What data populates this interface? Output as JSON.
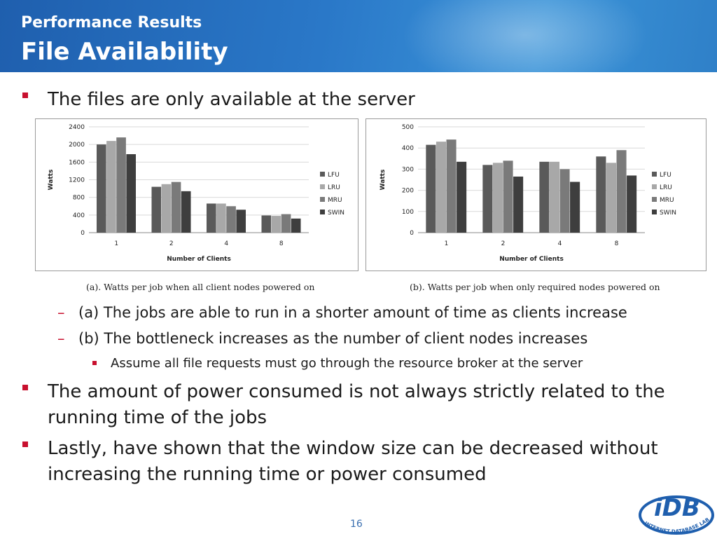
{
  "slide": {
    "subtitle": "Performance Results",
    "title": "File Availability",
    "bullets": [
      "The files are only available at the server",
      "The amount of power consumed is not always strictly related to the running time of the jobs",
      "Lastly, have shown that the window size can be decreased without increasing the running time or power consumed"
    ],
    "sub_bullets": [
      "(a) The jobs are able to run in a shorter amount of time as clients increase",
      "(b) The bottleneck increases as the number of client nodes increases"
    ],
    "sub_sub_bullets": [
      "Assume all file requests must go through the resource broker at the server"
    ],
    "page_number": "16",
    "logo_text": "iDB",
    "logo_ring_text": "INTERNET DATABASE LAB"
  },
  "colors": {
    "header": "#2a78c8",
    "bullet_red": "#c8102e",
    "series": [
      "#5a5a5a",
      "#a8a8a8",
      "#7a7a7a",
      "#3e3e3e"
    ],
    "logo_blue": "#1f5fae"
  },
  "chart_data": [
    {
      "type": "bar",
      "title": "",
      "caption": "(a). Watts per job when all client nodes powered on",
      "xlabel": "Number of Clients",
      "ylabel": "Watts",
      "categories": [
        "1",
        "2",
        "4",
        "8"
      ],
      "ylim": [
        0,
        2400
      ],
      "yticks": [
        "0",
        "400",
        "800",
        "1200",
        "1600",
        "2000",
        "2400"
      ],
      "legend_position": "right",
      "grid": true,
      "series": [
        {
          "name": "LFU",
          "values": [
            2000,
            1040,
            660,
            390
          ]
        },
        {
          "name": "LRU",
          "values": [
            2080,
            1100,
            660,
            380
          ]
        },
        {
          "name": "MRU",
          "values": [
            2160,
            1150,
            600,
            420
          ]
        },
        {
          "name": "SWIN",
          "values": [
            1780,
            940,
            520,
            320
          ]
        }
      ]
    },
    {
      "type": "bar",
      "title": "",
      "caption": "(b). Watts per job when only required nodes powered on",
      "xlabel": "Number of Clients",
      "ylabel": "Watts",
      "categories": [
        "1",
        "2",
        "4",
        "8"
      ],
      "ylim": [
        0,
        500
      ],
      "yticks": [
        "0",
        "100",
        "200",
        "300",
        "400",
        "500"
      ],
      "legend_position": "right",
      "grid": true,
      "series": [
        {
          "name": "LFU",
          "values": [
            415,
            320,
            335,
            360
          ]
        },
        {
          "name": "LRU",
          "values": [
            430,
            330,
            335,
            330
          ]
        },
        {
          "name": "MRU",
          "values": [
            440,
            340,
            300,
            390
          ]
        },
        {
          "name": "SWIN",
          "values": [
            335,
            265,
            240,
            270
          ]
        }
      ]
    }
  ]
}
